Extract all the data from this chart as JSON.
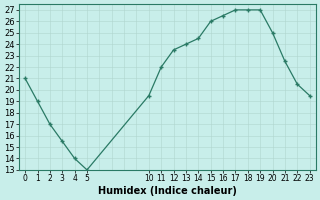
{
  "x": [
    0,
    1,
    2,
    3,
    4,
    5,
    10,
    11,
    12,
    13,
    14,
    15,
    16,
    17,
    18,
    19,
    20,
    21,
    22,
    23
  ],
  "y": [
    21,
    19,
    17,
    15.5,
    14,
    13,
    19.5,
    22,
    23.5,
    24,
    24.5,
    26,
    26.5,
    27,
    27,
    27,
    25,
    22.5,
    20.5,
    19.5
  ],
  "line_color": "#2a7a65",
  "marker_color": "#2a7a65",
  "bg_color": "#c8eeea",
  "grid_color_major": "#b0d5cf",
  "grid_color_minor": "#c0e5e0",
  "xlabel": "Humidex (Indice chaleur)",
  "ylim": [
    13,
    27.5
  ],
  "xlim": [
    -0.5,
    23.5
  ],
  "yticks": [
    13,
    14,
    15,
    16,
    17,
    18,
    19,
    20,
    21,
    22,
    23,
    24,
    25,
    26,
    27
  ],
  "xticks": [
    0,
    1,
    2,
    3,
    4,
    5,
    10,
    11,
    12,
    13,
    14,
    15,
    16,
    17,
    18,
    19,
    20,
    21,
    22,
    23
  ],
  "xtick_labels": [
    "0",
    "1",
    "2",
    "3",
    "4",
    "5",
    "10",
    "11",
    "12",
    "13",
    "14",
    "15",
    "16",
    "17",
    "18",
    "19",
    "20",
    "21",
    "22",
    "23"
  ],
  "xlabel_fontsize": 7,
  "ytick_fontsize": 6,
  "xtick_fontsize": 5.5,
  "spine_color": "#2a7a65"
}
